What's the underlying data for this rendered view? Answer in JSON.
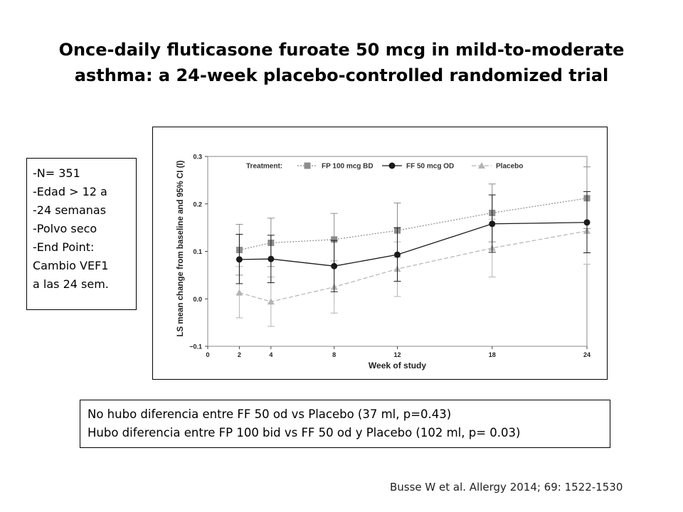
{
  "slide": {
    "title": "Once-daily fluticasone furoate 50 mcg in mild-to-moderate asthma: a 24-week placebo-controlled randomized trial"
  },
  "info_box": {
    "lines": [
      "-N= 351",
      "-Edad > 12 a",
      "-24 semanas",
      "-Polvo seco",
      "-End Point:",
      "Cambio VEF1",
      "a las 24 sem."
    ]
  },
  "note_box": {
    "lines": [
      "No hubo diferencia entre FF 50 od vs Placebo (37 ml, p=0.43)",
      "Hubo diferencia entre FP 100 bid vs FF 50 od y Placebo (102 ml, p= 0.03)"
    ]
  },
  "citation": "Busse W et al. Allergy 2014; 69: 1522-1530",
  "chart_data": {
    "type": "line",
    "title": "",
    "xlabel": "Week of study",
    "ylabel": "LS mean change from baseline and 95% CI (l)",
    "xlim": [
      0,
      24
    ],
    "ylim": [
      -0.1,
      0.3
    ],
    "x_ticks": [
      0,
      2,
      4,
      8,
      12,
      18,
      24
    ],
    "y_ticks": [
      -0.1,
      0.0,
      0.1,
      0.2,
      0.3
    ],
    "y_tick_labels": [
      "−0.1",
      "0.0",
      "0.1",
      "0.2",
      "0.3"
    ],
    "legend_title": "Treatment:",
    "legend_position": "top",
    "x": [
      2,
      4,
      8,
      12,
      18,
      24
    ],
    "series": [
      {
        "name": "FP 100 mcg BD",
        "marker": "square",
        "line_style": "dotted",
        "color": "#8c8c8c",
        "values": [
          0.103,
          0.118,
          0.125,
          0.144,
          0.181,
          0.212
        ],
        "ci_low": [
          0.05,
          0.068,
          0.07,
          0.088,
          0.12,
          0.148
        ],
        "ci_high": [
          0.157,
          0.17,
          0.18,
          0.202,
          0.242,
          0.278
        ]
      },
      {
        "name": "FF 50 mcg OD",
        "marker": "circle",
        "line_style": "solid",
        "color": "#1a1a1a",
        "values": [
          0.083,
          0.084,
          0.069,
          0.093,
          0.158,
          0.161
        ],
        "ci_low": [
          0.032,
          0.034,
          0.015,
          0.037,
          0.098,
          0.097
        ],
        "ci_high": [
          0.136,
          0.134,
          0.123,
          0.15,
          0.219,
          0.226
        ]
      },
      {
        "name": "Placebo",
        "marker": "triangle",
        "line_style": "dashed",
        "color": "#b4b4b4",
        "values": [
          0.013,
          -0.006,
          0.025,
          0.063,
          0.107,
          0.143
        ],
        "ci_low": [
          -0.04,
          -0.058,
          -0.03,
          0.005,
          0.046,
          0.073
        ],
        "ci_high": [
          0.068,
          0.046,
          0.08,
          0.12,
          0.168,
          0.215
        ]
      }
    ]
  }
}
